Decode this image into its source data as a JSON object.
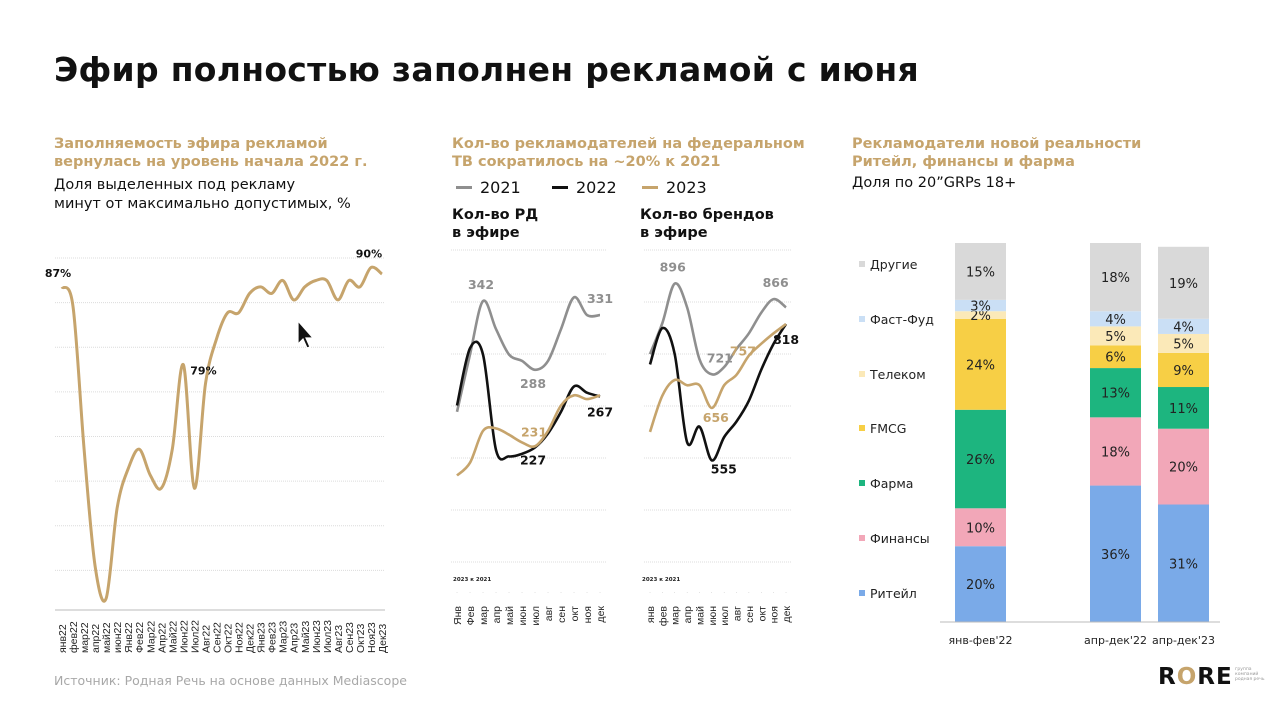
{
  "page": {
    "title": "Эфир полностью заполнен рекламой с июня",
    "source": "Источник: Родная Речь на основе данных Mediascope",
    "logo": {
      "text_start": "R",
      "text_o": "O",
      "text_end": "RE",
      "small_text": "группа компаний родная речь"
    }
  },
  "left": {
    "heading_line1": "Заполняемость эфира рекламой",
    "heading_line2": "вернулась на уровень начала 2022 г.",
    "sub_line1": "Доля выделенных под рекламу",
    "sub_line2": "минут от максимально допустимых, %"
  },
  "middle": {
    "heading_line1": "Кол-во рекламодателей на федеральном",
    "heading_line2": "ТВ сократилось на ~20% к 2021",
    "legend": [
      {
        "label": "2021",
        "color": "#8f8f8f"
      },
      {
        "label": "2022",
        "color": "#111111"
      },
      {
        "label": "2023",
        "color": "#C6A46C"
      }
    ],
    "sub1_line1": "Кол-во РД",
    "sub1_line2": "в эфире",
    "sub2_line1": "Кол-во брендов",
    "sub2_line2": "в эфире"
  },
  "right": {
    "heading_line1": "Рекламодатели новой реальности",
    "heading_line2": "Ритейл, финансы и фарма",
    "sub_line1": "Доля по 20”GRPs 18+"
  },
  "colors": {
    "gold": "#C6A46C",
    "grey": "#8f8f8f",
    "black": "#111111"
  },
  "chart_data": [
    {
      "type": "line",
      "x": [
        "янв22",
        "фев22",
        "мар22",
        "апр22",
        "май22",
        "июн22",
        "Янв22",
        "Фев22",
        "Мар22",
        "Апр22",
        "Май22",
        "Июн22",
        "Июл22",
        "Авг22",
        "Сен22",
        "Окт22",
        "Ноя22",
        "Дек22",
        "Янв23",
        "Фев23",
        "Мар23",
        "Апр23",
        "Май23",
        "Июн23",
        "Июл23",
        "Авг23",
        "Сен23",
        "Окт23",
        "Ноя23",
        "Дек23"
      ],
      "series": [
        {
          "name": "",
          "values": [
            87,
            84,
            62,
            44,
            39,
            53,
            59,
            62,
            58,
            56,
            62,
            75,
            56,
            72,
            79,
            83,
            83,
            86,
            87,
            86,
            88,
            85,
            87,
            88,
            88,
            85,
            88,
            87,
            90,
            89
          ]
        }
      ],
      "data_labels": [
        "87%",
        "79%",
        "90%"
      ],
      "ylim": [
        38,
        93
      ],
      "grid": true
    },
    {
      "type": "line",
      "x": [
        "Янв",
        "Фев",
        "мар",
        "апр",
        "май",
        "июн",
        "июл",
        "авг",
        "сен",
        "окт",
        "ноя",
        "дек"
      ],
      "x_group_label": "2023 к 2021",
      "series": [
        {
          "name": "2021",
          "values": [
            255,
            300,
            342,
            320,
            300,
            295,
            288,
            295,
            320,
            345,
            331,
            331
          ]
        },
        {
          "name": "2022",
          "values": [
            260,
            305,
            300,
            225,
            220,
            222,
            227,
            238,
            255,
            275,
            270,
            267
          ]
        },
        {
          "name": "2023",
          "values": [
            205,
            215,
            240,
            242,
            237,
            231,
            228,
            240,
            260,
            268,
            265,
            268
          ]
        }
      ],
      "data_labels": [
        "342",
        "331",
        "288",
        "231",
        "227",
        "267"
      ],
      "ylim": [
        170,
        390
      ],
      "grid": true
    },
    {
      "type": "line",
      "x": [
        "янв",
        "фев",
        "мар",
        "апр",
        "май",
        "июн",
        "июл",
        "авг",
        "сен",
        "окт",
        "ноя",
        "дек"
      ],
      "x_group_label": "2023 к 2021",
      "series": [
        {
          "name": "2021",
          "values": [
            760,
            820,
            896,
            850,
            750,
            721,
            735,
            770,
            800,
            840,
            866,
            850
          ]
        },
        {
          "name": "2022",
          "values": [
            740,
            810,
            760,
            590,
            620,
            555,
            600,
            630,
            670,
            730,
            780,
            818
          ]
        },
        {
          "name": "2023",
          "values": [
            610,
            680,
            710,
            700,
            700,
            656,
            700,
            720,
            757,
            780,
            800,
            818
          ]
        }
      ],
      "data_labels": [
        "896",
        "866",
        "721",
        "757",
        "656",
        "555",
        "818"
      ],
      "ylim": [
        440,
        980
      ],
      "grid": true
    },
    {
      "type": "bar",
      "stacked": true,
      "percent": true,
      "categories": [
        "янв-фев'22",
        "апр-дек'22",
        "апр-дек'23"
      ],
      "series": [
        {
          "name": "Ритейл",
          "color": "#7aaae8",
          "values": [
            20,
            36,
            31
          ]
        },
        {
          "name": "Финансы",
          "color": "#f2a7b8",
          "values": [
            10,
            18,
            20
          ]
        },
        {
          "name": "Фарма",
          "color": "#1db57f",
          "values": [
            26,
            13,
            11
          ]
        },
        {
          "name": "FMCG",
          "color": "#f7cf45",
          "values": [
            24,
            6,
            9
          ]
        },
        {
          "name": "Телеком",
          "color": "#fbe9b8",
          "values": [
            2,
            5,
            5
          ]
        },
        {
          "name": "Фаст-Фуд",
          "color": "#cadff5",
          "values": [
            3,
            4,
            4
          ]
        },
        {
          "name": "Другие",
          "color": "#d9d9d9",
          "values": [
            15,
            18,
            19
          ]
        }
      ],
      "legend": "left"
    }
  ]
}
